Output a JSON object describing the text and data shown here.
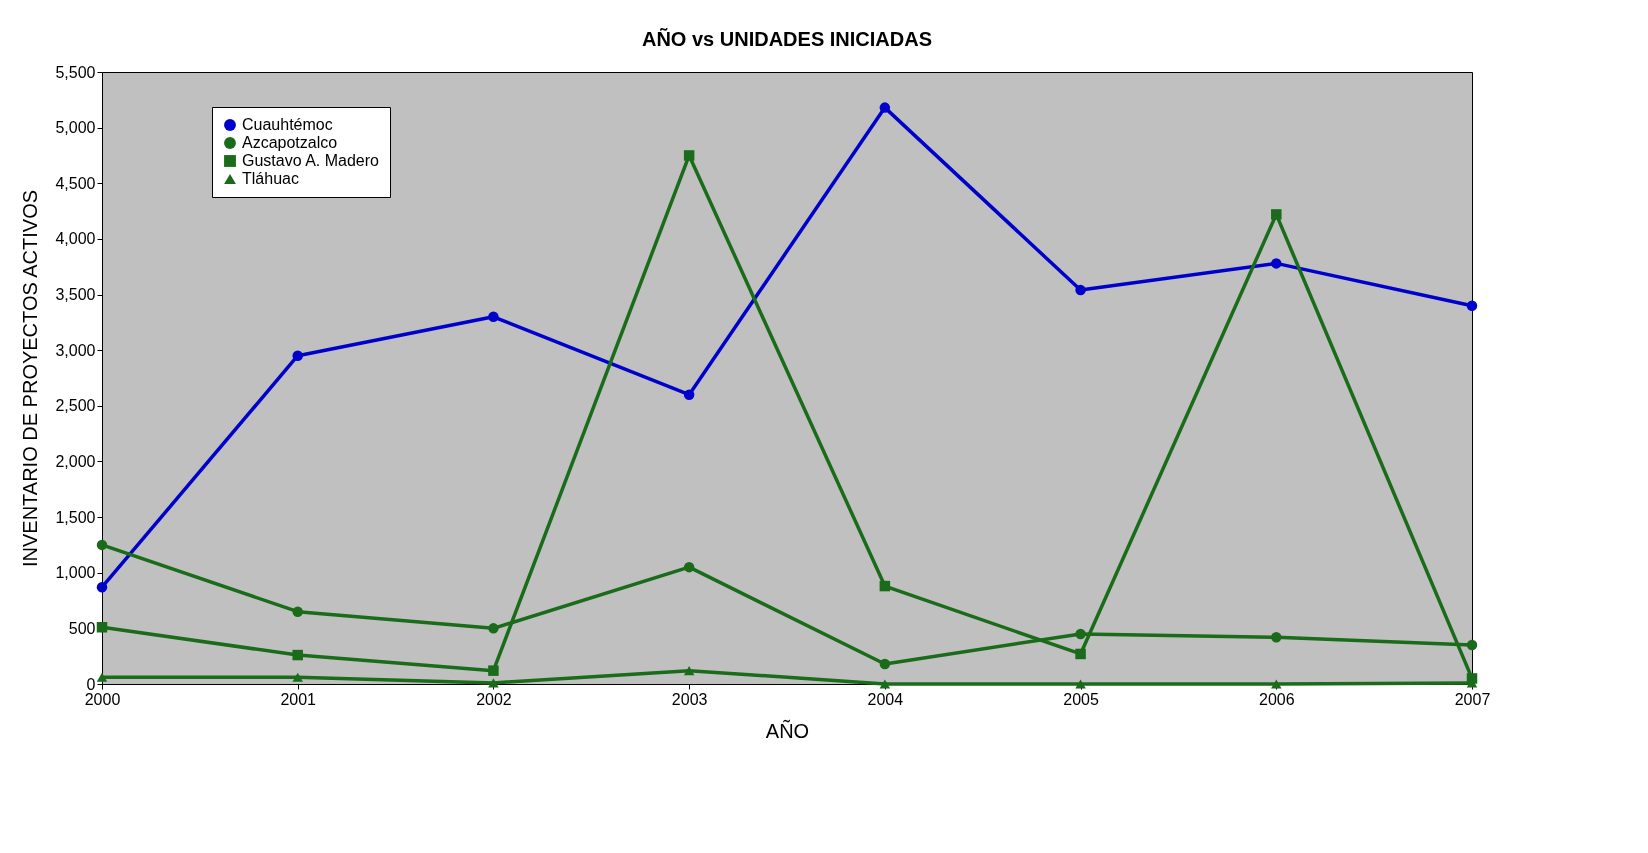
{
  "chart_data": {
    "type": "line",
    "title": "AÑO vs UNIDADES INICIADAS",
    "xlabel": "AÑO",
    "ylabel": "INVENTARIO DE PROYECTOS ACTIVOS",
    "x": [
      2000,
      2001,
      2002,
      2003,
      2004,
      2005,
      2006,
      2007
    ],
    "series": [
      {
        "name": "Cuauhtémoc",
        "color": "#0000cc",
        "marker": "circle",
        "values": [
          870,
          2950,
          3300,
          2600,
          5180,
          3540,
          3780,
          3400
        ]
      },
      {
        "name": "Azcapotzalco",
        "color": "#1a6b1a",
        "marker": "circle",
        "values": [
          1250,
          650,
          500,
          1050,
          180,
          450,
          420,
          350
        ]
      },
      {
        "name": "Gustavo A. Madero",
        "color": "#1a6b1a",
        "marker": "square",
        "values": [
          510,
          260,
          120,
          4750,
          880,
          270,
          4220,
          50
        ]
      },
      {
        "name": "Tláhuac",
        "color": "#1a6b1a",
        "marker": "triangle",
        "values": [
          60,
          60,
          10,
          120,
          0,
          0,
          0,
          10
        ]
      }
    ],
    "xlim": [
      2000,
      2007
    ],
    "xticks": [
      2000,
      2001,
      2002,
      2003,
      2004,
      2005,
      2006,
      2007
    ],
    "ylim": [
      0,
      5500
    ],
    "yticks": [
      {
        "value": 0,
        "label": "0"
      },
      {
        "value": 500,
        "label": "500"
      },
      {
        "value": 1000,
        "label": "1,000"
      },
      {
        "value": 1500,
        "label": "1,500"
      },
      {
        "value": 2000,
        "label": "2,000"
      },
      {
        "value": 2500,
        "label": "2,500"
      },
      {
        "value": 3000,
        "label": "3,000"
      },
      {
        "value": 3500,
        "label": "3,500"
      },
      {
        "value": 4000,
        "label": "4,000"
      },
      {
        "value": 4500,
        "label": "4,500"
      },
      {
        "value": 5000,
        "label": "5,000"
      },
      {
        "value": 5500,
        "label": "5,500"
      }
    ],
    "grid": false,
    "legend": "top left",
    "line_style": "solid"
  }
}
